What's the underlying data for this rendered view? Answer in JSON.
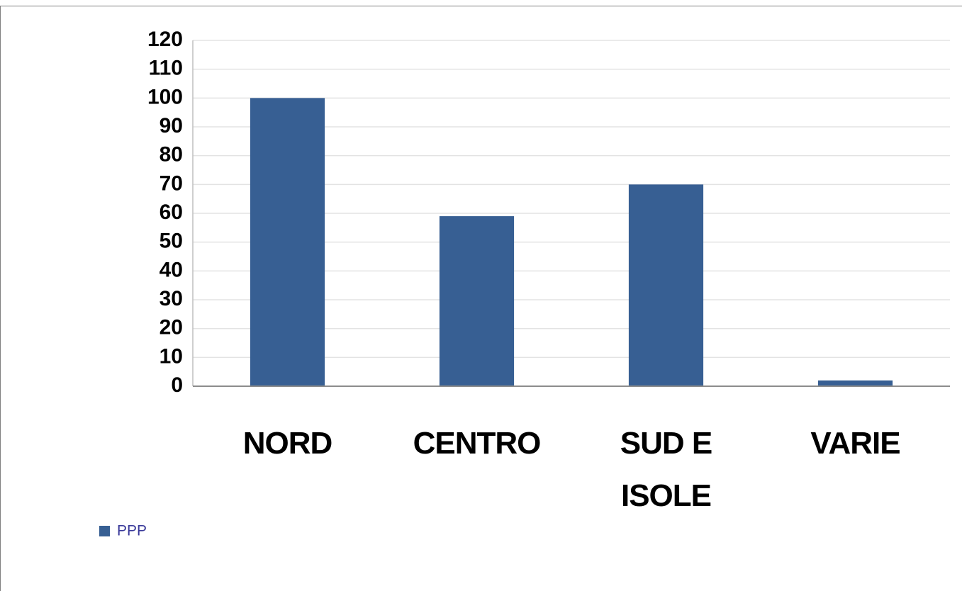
{
  "chart_data": {
    "type": "bar",
    "categories": [
      "NORD",
      "CENTRO",
      "SUD E ISOLE",
      "VARIE"
    ],
    "series": [
      {
        "name": "PPP",
        "color": "#375f93",
        "values": [
          100,
          59,
          70,
          2
        ]
      }
    ],
    "ylim": [
      0,
      120
    ],
    "yticks": [
      0,
      10,
      20,
      30,
      40,
      50,
      60,
      70,
      80,
      90,
      100,
      110,
      120
    ],
    "grid": true,
    "legend": "bottom-left"
  }
}
